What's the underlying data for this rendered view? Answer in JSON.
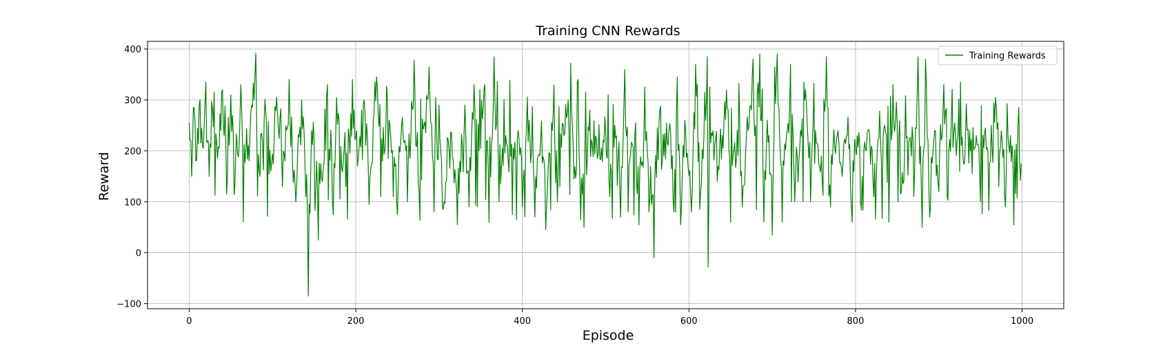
{
  "chart_data": {
    "type": "line",
    "title": "Training CNN Rewards",
    "xlabel": "Episode",
    "ylabel": "Reward",
    "xlim": [
      -50,
      1050
    ],
    "ylim": [
      -110,
      415
    ],
    "xticks": [
      0,
      200,
      400,
      600,
      800,
      1000
    ],
    "yticks": [
      -100,
      0,
      100,
      200,
      300,
      400
    ],
    "grid": true,
    "legend": {
      "position": "top-right",
      "entries": [
        "Training Rewards"
      ]
    },
    "series": [
      {
        "name": "Training Rewards",
        "color": "#008000",
        "seed": 7,
        "n_points": 1000,
        "keypoints": [
          [
            0,
            255
          ],
          [
            3,
            150
          ],
          [
            5,
            285
          ],
          [
            8,
            180
          ],
          [
            12,
            290
          ],
          [
            16,
            210
          ],
          [
            20,
            335
          ],
          [
            24,
            150
          ],
          [
            30,
            315
          ],
          [
            36,
            205
          ],
          [
            40,
            320
          ],
          [
            45,
            115
          ],
          [
            50,
            310
          ],
          [
            55,
            135
          ],
          [
            62,
            330
          ],
          [
            68,
            200
          ],
          [
            75,
            290
          ],
          [
            80,
            392
          ],
          [
            85,
            150
          ],
          [
            92,
            275
          ],
          [
            98,
            160
          ],
          [
            105,
            305
          ],
          [
            112,
            130
          ],
          [
            120,
            340
          ],
          [
            128,
            100
          ],
          [
            135,
            300
          ],
          [
            140,
            110
          ],
          [
            143,
            -85
          ],
          [
            147,
            240
          ],
          [
            152,
            120
          ],
          [
            155,
            25
          ],
          [
            160,
            140
          ],
          [
            166,
            330
          ],
          [
            172,
            100
          ],
          [
            180,
            260
          ],
          [
            188,
            130
          ],
          [
            196,
            340
          ],
          [
            202,
            170
          ],
          [
            210,
            300
          ],
          [
            216,
            95
          ],
          [
            225,
            345
          ],
          [
            232,
            180
          ],
          [
            240,
            260
          ],
          [
            245,
            110
          ],
          [
            250,
            75
          ],
          [
            255,
            250
          ],
          [
            262,
            100
          ],
          [
            270,
            378
          ],
          [
            276,
            120
          ],
          [
            282,
            250
          ],
          [
            288,
            365
          ],
          [
            294,
            80
          ],
          [
            300,
            290
          ],
          [
            306,
            100
          ],
          [
            315,
            235
          ],
          [
            322,
            55
          ],
          [
            330,
            230
          ],
          [
            336,
            90
          ],
          [
            342,
            330
          ],
          [
            348,
            200
          ],
          [
            355,
            330
          ],
          [
            360,
            60
          ],
          [
            366,
            385
          ],
          [
            372,
            100
          ],
          [
            380,
            230
          ],
          [
            388,
            75
          ],
          [
            395,
            240
          ],
          [
            400,
            90
          ],
          [
            408,
            260
          ],
          [
            415,
            70
          ],
          [
            422,
            220
          ],
          [
            428,
            45
          ],
          [
            436,
            240
          ],
          [
            442,
            100
          ],
          [
            450,
            230
          ],
          [
            455,
            300
          ],
          [
            458,
            372
          ],
          [
            462,
            145
          ],
          [
            468,
            200
          ],
          [
            474,
            50
          ],
          [
            480,
            240
          ],
          [
            490,
            185
          ],
          [
            500,
            238
          ],
          [
            505,
            110
          ],
          [
            512,
            225
          ],
          [
            518,
            70
          ],
          [
            523,
            360
          ],
          [
            527,
            80
          ],
          [
            535,
            230
          ],
          [
            540,
            55
          ],
          [
            548,
            220
          ],
          [
            552,
            80
          ],
          [
            558,
            -10
          ],
          [
            562,
            245
          ],
          [
            570,
            190
          ],
          [
            576,
            240
          ],
          [
            582,
            80
          ],
          [
            586,
            345
          ],
          [
            590,
            55
          ],
          [
            596,
            240
          ],
          [
            603,
            80
          ],
          [
            608,
            370
          ],
          [
            613,
            85
          ],
          [
            618,
            230
          ],
          [
            622,
            385
          ],
          [
            623,
            -28
          ],
          [
            628,
            230
          ],
          [
            634,
            140
          ],
          [
            640,
            230
          ],
          [
            645,
            320
          ],
          [
            650,
            60
          ],
          [
            658,
            240
          ],
          [
            664,
            90
          ],
          [
            671,
            240
          ],
          [
            677,
            380
          ],
          [
            680,
            250
          ],
          [
            685,
            390
          ],
          [
            690,
            60
          ],
          [
            696,
            230
          ],
          [
            700,
            35
          ],
          [
            703,
            365
          ],
          [
            706,
            390
          ],
          [
            712,
            60
          ],
          [
            718,
            240
          ],
          [
            722,
            370
          ],
          [
            727,
            100
          ],
          [
            734,
            240
          ],
          [
            740,
            320
          ],
          [
            746,
            100
          ],
          [
            752,
            240
          ],
          [
            760,
            140
          ],
          [
            765,
            385
          ],
          [
            770,
            90
          ],
          [
            778,
            230
          ],
          [
            784,
            150
          ],
          [
            790,
            230
          ],
          [
            796,
            60
          ],
          [
            802,
            230
          ],
          [
            808,
            150
          ],
          [
            815,
            240
          ],
          [
            822,
            110
          ],
          [
            828,
            225
          ],
          [
            835,
            250
          ],
          [
            840,
            60
          ],
          [
            845,
            330
          ],
          [
            852,
            230
          ],
          [
            858,
            140
          ],
          [
            865,
            225
          ],
          [
            870,
            110
          ],
          [
            875,
            385
          ],
          [
            880,
            50
          ],
          [
            884,
            380
          ],
          [
            889,
            70
          ],
          [
            895,
            240
          ],
          [
            900,
            120
          ],
          [
            906,
            330
          ],
          [
            912,
            200
          ],
          [
            918,
            235
          ],
          [
            925,
            160
          ],
          [
            932,
            230
          ],
          [
            938,
            200
          ],
          [
            945,
            230
          ],
          [
            950,
            100
          ],
          [
            956,
            245
          ],
          [
            962,
            180
          ],
          [
            968,
            305
          ],
          [
            972,
            130
          ],
          [
            976,
            220
          ],
          [
            980,
            90
          ],
          [
            986,
            230
          ],
          [
            990,
            55
          ],
          [
            995,
            250
          ],
          [
            999,
            175
          ]
        ]
      }
    ]
  }
}
